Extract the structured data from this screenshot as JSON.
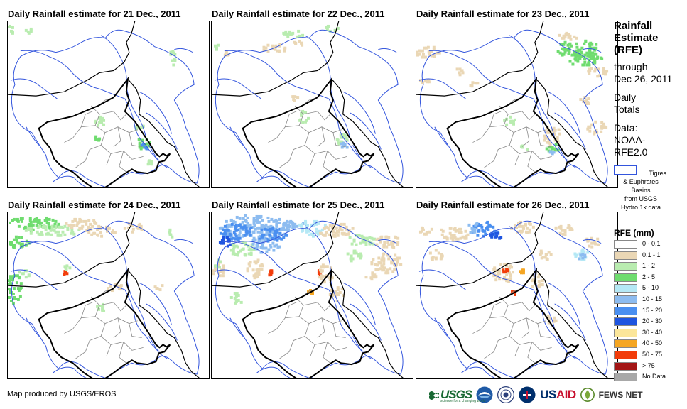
{
  "panels": [
    {
      "id": "p21",
      "title": "Daily Rainfall estimate for 21 Dec., 2011"
    },
    {
      "id": "p22",
      "title": "Daily Rainfall estimate for 22 Dec., 2011"
    },
    {
      "id": "p23",
      "title": "Daily Rainfall estimate for 23 Dec., 2011"
    },
    {
      "id": "p24",
      "title": "Daily Rainfall estimate for 24 Dec., 2011"
    },
    {
      "id": "p25",
      "title": "Daily Rainfall estimate for 25 Dec., 2011"
    },
    {
      "id": "p26",
      "title": "Daily Rainfall estimate for 26 Dec., 2011"
    }
  ],
  "sidebar": {
    "title_lines": [
      "Rainfall",
      "Estimate",
      "(RFE)"
    ],
    "through_lines": [
      "through",
      "Dec 26, 2011"
    ],
    "daily_lines": [
      "Daily",
      "Totals"
    ],
    "data_lines": [
      "Data:",
      "NOAA-",
      "RFE2.0"
    ],
    "basin_lines": [
      "Tigres",
      "& Euphrates",
      "Basins",
      "from USGS",
      "Hydro 1k data"
    ]
  },
  "legend": {
    "title": "RFE (mm)",
    "items": [
      {
        "label": "0 - 0.1",
        "color": "#ffffff"
      },
      {
        "label": "0.1 - 1",
        "color": "#ead7b5"
      },
      {
        "label": "1 - 2",
        "color": "#b9ecb0"
      },
      {
        "label": "2 - 5",
        "color": "#6fdc6f"
      },
      {
        "label": "5 - 10",
        "color": "#b5e8f5"
      },
      {
        "label": "10 - 15",
        "color": "#8dbcf0"
      },
      {
        "label": "15 - 20",
        "color": "#4a8ff0"
      },
      {
        "label": "20 - 30",
        "color": "#1f55e0"
      },
      {
        "label": "30 - 40",
        "color": "#fbe69a"
      },
      {
        "label": "40 - 50",
        "color": "#f5a623"
      },
      {
        "label": "50 - 75",
        "color": "#f23c0a"
      },
      {
        "label": "> 75",
        "color": "#a31515"
      },
      {
        "label": "No Data",
        "color": "#a8a8a8"
      }
    ]
  },
  "footer": {
    "credit": "Map produced by USGS/EROS",
    "usgs": "USGS",
    "usgs_tagline": "science for a changing world",
    "usaid_a": "US",
    "usaid_b": "AID",
    "fews": "FEWS NET"
  }
}
